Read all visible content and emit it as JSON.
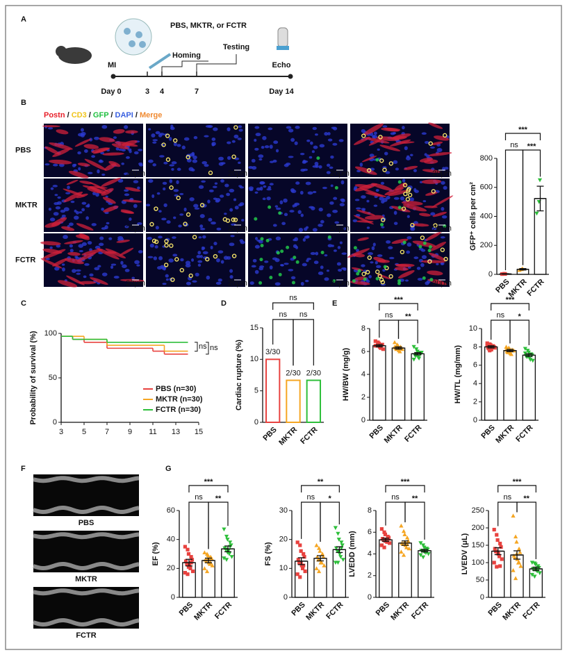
{
  "panel_labels": [
    "A",
    "B",
    "C",
    "D",
    "E",
    "F",
    "G"
  ],
  "timeline": {
    "treatment": "PBS, MKTR, or FCTR",
    "homing": "Homing",
    "testing": "Testing",
    "mi": "MI",
    "echo": "Echo",
    "days": [
      "Day 0",
      "3",
      "4",
      "7",
      "Day 14"
    ]
  },
  "microscopy": {
    "channels": [
      "Postn",
      "CD3",
      "GFP",
      "DAPI",
      "Merge"
    ],
    "separator": " / ",
    "rows": [
      "PBS",
      "MKTR",
      "FCTR"
    ],
    "scale_bar": "20μm"
  },
  "echo": {
    "rows": [
      "PBS",
      "MKTR",
      "FCTR"
    ]
  },
  "chart_data": [
    {
      "type": "bar",
      "ylabel": "GFP⁺ cells per cm²",
      "categories": [
        "PBS",
        "MKTR",
        "FCTR"
      ],
      "values": [
        3,
        35,
        523
      ],
      "errors": [
        2,
        5,
        85
      ],
      "colors": [
        "#e8423f",
        "#f5a623",
        "#2dbf3a"
      ],
      "points": [
        [
          2,
          4,
          3
        ],
        [
          30,
          35,
          40
        ],
        [
          420,
          500,
          650
        ]
      ],
      "ylim": [
        0,
        800
      ],
      "yticks": [
        0,
        200,
        400,
        600,
        800
      ],
      "significance": [
        "***",
        "ns",
        "***"
      ]
    },
    {
      "type": "line",
      "ylabel": "Probability of survival (%)",
      "xlim": [
        3,
        15
      ],
      "xticks": [
        3,
        5,
        7,
        9,
        11,
        13,
        15
      ],
      "ylim": [
        0,
        100
      ],
      "yticks": [
        0,
        50,
        100
      ],
      "series": [
        {
          "name": "PBS (n=30)",
          "color": "#e8423f",
          "x": [
            3,
            4,
            5,
            7,
            11,
            12,
            14
          ],
          "values": [
            96.7,
            93.3,
            90,
            83.3,
            80,
            76.7,
            76.7
          ]
        },
        {
          "name": "MKTR (n=30)",
          "color": "#f5a623",
          "x": [
            3,
            5,
            7,
            12,
            14
          ],
          "values": [
            96.7,
            93.3,
            86.7,
            80,
            80
          ]
        },
        {
          "name": "FCTR (n=30)",
          "color": "#2dbf3a",
          "x": [
            3,
            4,
            7,
            14
          ],
          "values": [
            96.7,
            93.3,
            90,
            90
          ]
        }
      ],
      "significance": [
        "ns",
        "ns"
      ]
    },
    {
      "type": "bar",
      "ylabel": "Cardiac rupture (%)",
      "categories": [
        "PBS",
        "MKTR",
        "FCTR"
      ],
      "values": [
        10,
        6.67,
        6.67
      ],
      "value_labels": [
        "3/30",
        "2/30",
        "2/30"
      ],
      "colors": [
        "#e8423f",
        "#f5a623",
        "#2dbf3a"
      ],
      "ylim": [
        0,
        15
      ],
      "yticks": [
        0,
        5,
        10,
        15
      ],
      "significance": [
        "ns",
        "ns",
        "ns"
      ]
    },
    {
      "type": "bar",
      "ylabel": "HW/BW (mg/g)",
      "categories": [
        "PBS",
        "MKTR",
        "FCTR"
      ],
      "values": [
        6.5,
        6.3,
        5.8
      ],
      "errors": [
        0.1,
        0.1,
        0.1
      ],
      "colors": [
        "#e8423f",
        "#f5a623",
        "#2dbf3a"
      ],
      "points": [
        [
          6.9,
          6.8,
          6.7,
          6.6,
          6.6,
          6.5,
          6.5,
          6.4,
          6.3,
          6.2,
          6.5,
          6.6
        ],
        [
          6.8,
          6.6,
          6.5,
          6.4,
          6.3,
          6.3,
          6.2,
          6.1,
          6.0,
          6.2,
          6.4,
          6.3
        ],
        [
          6.4,
          6.2,
          6.0,
          5.9,
          5.8,
          5.7,
          5.6,
          5.5,
          5.4,
          5.9,
          5.3,
          5.8
        ]
      ],
      "ylim": [
        0,
        8
      ],
      "yticks": [
        0,
        2,
        4,
        6,
        8
      ],
      "significance": [
        "***",
        "ns",
        "**"
      ]
    },
    {
      "type": "bar",
      "ylabel": "HW/TL (mg/mm)",
      "categories": [
        "PBS",
        "MKTR",
        "FCTR"
      ],
      "values": [
        8.0,
        7.6,
        7.1
      ],
      "errors": [
        0.12,
        0.12,
        0.15
      ],
      "colors": [
        "#e8423f",
        "#f5a623",
        "#2dbf3a"
      ],
      "points": [
        [
          8.4,
          8.3,
          8.2,
          8.1,
          8.0,
          7.9,
          7.8,
          7.7,
          8.1,
          7.9,
          8.2,
          7.6
        ],
        [
          8.0,
          7.9,
          7.8,
          7.7,
          7.6,
          7.5,
          7.4,
          7.3,
          7.2,
          7.6,
          7.7,
          7.5
        ],
        [
          7.8,
          7.6,
          7.4,
          7.2,
          7.1,
          7.0,
          6.9,
          6.8,
          6.6,
          6.5,
          7.3,
          7.0
        ]
      ],
      "ylim": [
        0,
        10
      ],
      "yticks": [
        0,
        2,
        4,
        6,
        8,
        10
      ],
      "significance": [
        "***",
        "ns",
        "*"
      ]
    },
    {
      "type": "bar",
      "ylabel": "EF (%)",
      "categories": [
        "PBS",
        "MKTR",
        "FCTR"
      ],
      "values": [
        24,
        25.5,
        33.5
      ],
      "errors": [
        2.3,
        1.6,
        2
      ],
      "colors": [
        "#e8423f",
        "#f5a623",
        "#2dbf3a"
      ],
      "points": [
        [
          35,
          33,
          30,
          28,
          26,
          25,
          23,
          22,
          20,
          18,
          17,
          16,
          21,
          24
        ],
        [
          31,
          30,
          29,
          28,
          27,
          26,
          25,
          24,
          23,
          22,
          20,
          18,
          27,
          24
        ],
        [
          47,
          42,
          40,
          38,
          36,
          34,
          33,
          32,
          30,
          28,
          27,
          26,
          31,
          35
        ]
      ],
      "ylim": [
        0,
        60
      ],
      "yticks": [
        0,
        20,
        40,
        60
      ],
      "significance": [
        "***",
        "ns",
        "**"
      ]
    },
    {
      "type": "bar",
      "ylabel": "FS (%)",
      "categories": [
        "PBS",
        "MKTR",
        "FCTR"
      ],
      "values": [
        12.5,
        13.5,
        16.5
      ],
      "errors": [
        1.2,
        0.9,
        1
      ],
      "colors": [
        "#e8423f",
        "#f5a623",
        "#2dbf3a"
      ],
      "points": [
        [
          19,
          18,
          16,
          15,
          14,
          13,
          12,
          11,
          10,
          9,
          8,
          7,
          12,
          11
        ],
        [
          18,
          17,
          16,
          15,
          14,
          14,
          13,
          12,
          12,
          11,
          10,
          9,
          13,
          15
        ],
        [
          24,
          22,
          20,
          19,
          18,
          17,
          16,
          15,
          14,
          13,
          12,
          12,
          16,
          17
        ]
      ],
      "ylim": [
        0,
        30
      ],
      "yticks": [
        0,
        10,
        20,
        30
      ],
      "significance": [
        "**",
        "ns",
        "*"
      ]
    },
    {
      "type": "bar",
      "ylabel": "LVEDD (mm)",
      "categories": [
        "PBS",
        "MKTR",
        "FCTR"
      ],
      "values": [
        5.3,
        5.0,
        4.3
      ],
      "errors": [
        0.15,
        0.2,
        0.12
      ],
      "colors": [
        "#e8423f",
        "#f5a623",
        "#2dbf3a"
      ],
      "points": [
        [
          6.3,
          6.0,
          5.8,
          5.6,
          5.5,
          5.4,
          5.3,
          5.2,
          5.1,
          5.0,
          4.8,
          4.6,
          5.2,
          5.4
        ],
        [
          6.6,
          6.1,
          5.8,
          5.5,
          5.2,
          5.0,
          4.9,
          4.8,
          4.6,
          4.5,
          4.2,
          3.9,
          5.1,
          4.9
        ],
        [
          5.0,
          4.8,
          4.6,
          4.5,
          4.4,
          4.3,
          4.3,
          4.2,
          4.1,
          4.0,
          3.9,
          3.7,
          4.2,
          4.4
        ]
      ],
      "ylim": [
        0,
        8
      ],
      "yticks": [
        0,
        2,
        4,
        6,
        8
      ],
      "significance": [
        "***",
        "ns",
        "**"
      ]
    },
    {
      "type": "bar",
      "ylabel": "LVEDV (μL)",
      "categories": [
        "PBS",
        "MKTR",
        "FCTR"
      ],
      "values": [
        133,
        122,
        82
      ],
      "errors": [
        10,
        12,
        5
      ],
      "colors": [
        "#e8423f",
        "#f5a623",
        "#2dbf3a"
      ],
      "points": [
        [
          195,
          180,
          165,
          155,
          145,
          140,
          132,
          125,
          118,
          110,
          100,
          88,
          130,
          90
        ],
        [
          235,
          175,
          160,
          140,
          130,
          120,
          115,
          110,
          100,
          90,
          78,
          55,
          125,
          100
        ],
        [
          100,
          98,
          95,
          90,
          85,
          82,
          80,
          78,
          75,
          70,
          65,
          60,
          80,
          85
        ]
      ],
      "ylim": [
        0,
        250
      ],
      "yticks": [
        0,
        50,
        100,
        150,
        200,
        250
      ],
      "significance": [
        "***",
        "ns",
        "**"
      ]
    }
  ]
}
